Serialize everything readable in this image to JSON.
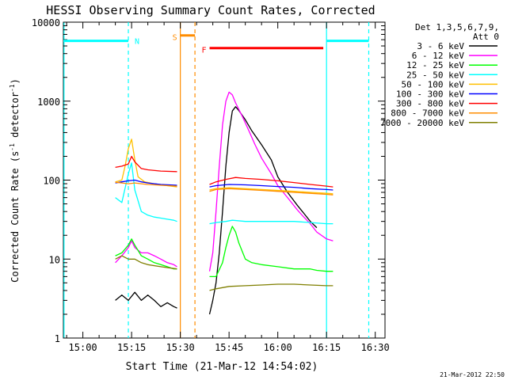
{
  "chart_data": {
    "type": "line",
    "title": "HESSI Observing Summary Count Rates, Corrected",
    "xlabel": "Start Time (21-Mar-12 14:54:02)",
    "ylabel_main": "Corrected Count Rate (s",
    "ylabel_sup1": "-1",
    "ylabel_mid": " detector",
    "ylabel_sup2": "-1",
    "ylabel_end": ")",
    "yscale": "log",
    "ylim": [
      1,
      10000
    ],
    "xlim_minutes": [
      "14:54",
      "16:33"
    ],
    "x_ticks": [
      {
        "label": "15:00",
        "m": 60
      },
      {
        "label": "15:15",
        "m": 75
      },
      {
        "label": "15:30",
        "m": 90
      },
      {
        "label": "15:45",
        "m": 105
      },
      {
        "label": "16:00",
        "m": 120
      },
      {
        "label": "16:15",
        "m": 135
      },
      {
        "label": "16:30",
        "m": 150
      }
    ],
    "y_ticks": [
      {
        "label": "1",
        "v": 1
      },
      {
        "label": "10",
        "v": 10
      },
      {
        "label": "100",
        "v": 100
      },
      {
        "label": "1000",
        "v": 1000
      },
      {
        "label": "10000",
        "v": 10000
      }
    ],
    "legend": {
      "header1": "Det 1,3,5,6,7,9,",
      "header2": "Att 0",
      "placement": "right"
    },
    "series": [
      {
        "name": "3 - 6 keV",
        "color": "#000000",
        "segments": [
          [
            [
              70,
              3
            ],
            [
              72,
              3.5
            ],
            [
              74,
              3
            ],
            [
              76,
              3.8
            ],
            [
              78,
              3
            ],
            [
              80,
              3.5
            ],
            [
              82,
              3
            ],
            [
              84,
              2.5
            ],
            [
              86,
              2.8
            ],
            [
              88,
              2.5
            ],
            [
              89,
              2.4
            ]
          ],
          [
            [
              99,
              2
            ],
            [
              100,
              3
            ],
            [
              101,
              5
            ],
            [
              102,
              12
            ],
            [
              103,
              40
            ],
            [
              104,
              150
            ],
            [
              105,
              400
            ],
            [
              106,
              750
            ],
            [
              107,
              850
            ],
            [
              108,
              760
            ],
            [
              110,
              580
            ],
            [
              112,
              420
            ],
            [
              115,
              280
            ],
            [
              118,
              180
            ],
            [
              120,
              110
            ],
            [
              123,
              70
            ],
            [
              126,
              48
            ],
            [
              128,
              38
            ],
            [
              130,
              30
            ],
            [
              132,
              25
            ]
          ]
        ]
      },
      {
        "name": "6 - 12 keV",
        "color": "#ff00ff",
        "segments": [
          [
            [
              70,
              9
            ],
            [
              72,
              11
            ],
            [
              74,
              14
            ],
            [
              75,
              17
            ],
            [
              76,
              14
            ],
            [
              78,
              12
            ],
            [
              80,
              12
            ],
            [
              82,
              11
            ],
            [
              84,
              10
            ],
            [
              86,
              9
            ],
            [
              88,
              8.5
            ],
            [
              89,
              8
            ]
          ],
          [
            [
              99,
              7
            ],
            [
              100,
              12
            ],
            [
              101,
              40
            ],
            [
              102,
              150
            ],
            [
              103,
              500
            ],
            [
              104,
              1000
            ],
            [
              105,
              1300
            ],
            [
              106,
              1200
            ],
            [
              107,
              950
            ],
            [
              109,
              650
            ],
            [
              111,
              430
            ],
            [
              113,
              280
            ],
            [
              115,
              190
            ],
            [
              118,
              120
            ],
            [
              120,
              85
            ],
            [
              123,
              60
            ],
            [
              126,
              42
            ],
            [
              128,
              34
            ],
            [
              130,
              28
            ],
            [
              132,
              22
            ],
            [
              135,
              18
            ],
            [
              137,
              17
            ]
          ]
        ]
      },
      {
        "name": "12 - 25 keV",
        "color": "#00ff00",
        "segments": [
          [
            [
              70,
              11
            ],
            [
              72,
              12
            ],
            [
              74,
              15
            ],
            [
              75,
              18
            ],
            [
              76,
              15
            ],
            [
              78,
              11
            ],
            [
              80,
              10
            ],
            [
              82,
              9
            ],
            [
              84,
              8.5
            ],
            [
              86,
              8
            ],
            [
              88,
              7.5
            ],
            [
              89,
              7.5
            ]
          ],
          [
            [
              99,
              6
            ],
            [
              101,
              6
            ],
            [
              103,
              9
            ],
            [
              104,
              14
            ],
            [
              105,
              20
            ],
            [
              106,
              26
            ],
            [
              107,
              22
            ],
            [
              108,
              16
            ],
            [
              110,
              10
            ],
            [
              112,
              9
            ],
            [
              115,
              8.5
            ],
            [
              120,
              8
            ],
            [
              125,
              7.5
            ],
            [
              130,
              7.5
            ],
            [
              132,
              7.2
            ],
            [
              135,
              7
            ],
            [
              137,
              7
            ]
          ]
        ]
      },
      {
        "name": "25 - 50 keV",
        "color": "#00ffff",
        "segments": [
          [
            [
              70,
              60
            ],
            [
              72,
              52
            ],
            [
              74,
              120
            ],
            [
              75,
              165
            ],
            [
              76,
              75
            ],
            [
              78,
              40
            ],
            [
              80,
              36
            ],
            [
              82,
              34
            ],
            [
              84,
              33
            ],
            [
              86,
              32
            ],
            [
              88,
              31
            ],
            [
              89,
              30
            ]
          ],
          [
            [
              99,
              28
            ],
            [
              101,
              29
            ],
            [
              104,
              30
            ],
            [
              106,
              31
            ],
            [
              110,
              30
            ],
            [
              115,
              30
            ],
            [
              120,
              30
            ],
            [
              125,
              30
            ],
            [
              130,
              29
            ],
            [
              135,
              28
            ],
            [
              137,
              28
            ]
          ]
        ]
      },
      {
        "name": "50 - 100 keV",
        "color": "#ffc000",
        "segments": [
          [
            [
              70,
              95
            ],
            [
              72,
              100
            ],
            [
              73,
              150
            ],
            [
              74,
              250
            ],
            [
              75,
              330
            ],
            [
              76,
              180
            ],
            [
              77,
              110
            ],
            [
              79,
              95
            ],
            [
              82,
              90
            ],
            [
              86,
              85
            ],
            [
              89,
              82
            ]
          ],
          [
            [
              99,
              75
            ],
            [
              101,
              78
            ],
            [
              105,
              80
            ],
            [
              110,
              78
            ],
            [
              115,
              76
            ],
            [
              120,
              74
            ],
            [
              125,
              72
            ],
            [
              130,
              70
            ],
            [
              135,
              68
            ],
            [
              137,
              67
            ]
          ]
        ]
      },
      {
        "name": "100 - 300 keV",
        "color": "#0000ff",
        "segments": [
          [
            [
              70,
              92
            ],
            [
              72,
              95
            ],
            [
              74,
              98
            ],
            [
              76,
              100
            ],
            [
              78,
              95
            ],
            [
              80,
              92
            ],
            [
              84,
              88
            ],
            [
              89,
              86
            ]
          ],
          [
            [
              99,
              82
            ],
            [
              101,
              85
            ],
            [
              105,
              88
            ],
            [
              110,
              87
            ],
            [
              115,
              85
            ],
            [
              120,
              83
            ],
            [
              125,
              81
            ],
            [
              130,
              78
            ],
            [
              135,
              76
            ],
            [
              137,
              75
            ]
          ]
        ]
      },
      {
        "name": "300 - 800 keV",
        "color": "#ff0000",
        "segments": [
          [
            [
              70,
              145
            ],
            [
              72,
              150
            ],
            [
              74,
              160
            ],
            [
              75,
              200
            ],
            [
              76,
              170
            ],
            [
              78,
              140
            ],
            [
              80,
              135
            ],
            [
              84,
              130
            ],
            [
              89,
              128
            ]
          ],
          [
            [
              99,
              88
            ],
            [
              101,
              95
            ],
            [
              104,
              102
            ],
            [
              107,
              108
            ],
            [
              110,
              105
            ],
            [
              115,
              102
            ],
            [
              120,
              98
            ],
            [
              125,
              93
            ],
            [
              130,
              88
            ],
            [
              135,
              84
            ],
            [
              137,
              82
            ]
          ]
        ]
      },
      {
        "name": "800 - 7000 keV",
        "color": "#ff8c00",
        "segments": [
          [
            [
              70,
              94
            ],
            [
              72,
              92
            ],
            [
              74,
              90
            ],
            [
              76,
              92
            ],
            [
              78,
              90
            ],
            [
              80,
              88
            ],
            [
              84,
              86
            ],
            [
              89,
              84
            ]
          ],
          [
            [
              99,
              72
            ],
            [
              101,
              76
            ],
            [
              105,
              78
            ],
            [
              110,
              76
            ],
            [
              115,
              74
            ],
            [
              120,
              72
            ],
            [
              125,
              70
            ],
            [
              130,
              68
            ],
            [
              135,
              66
            ],
            [
              137,
              65
            ]
          ]
        ]
      },
      {
        "name": "7000 - 20000 keV",
        "color": "#7f7f00",
        "segments": [
          [
            [
              70,
              10
            ],
            [
              72,
              11
            ],
            [
              74,
              10
            ],
            [
              76,
              10
            ],
            [
              78,
              9
            ],
            [
              80,
              8.5
            ],
            [
              84,
              8
            ],
            [
              89,
              7.5
            ]
          ],
          [
            [
              99,
              4
            ],
            [
              101,
              4.2
            ],
            [
              105,
              4.5
            ],
            [
              110,
              4.6
            ],
            [
              115,
              4.7
            ],
            [
              120,
              4.8
            ],
            [
              125,
              4.8
            ],
            [
              130,
              4.7
            ],
            [
              135,
              4.6
            ],
            [
              137,
              4.6
            ]
          ]
        ]
      }
    ],
    "flag_bars": [
      {
        "label": "N",
        "color": "#00ffff",
        "level": 5800,
        "segments": [
          [
            54,
            74
          ],
          [
            135,
            148
          ]
        ]
      },
      {
        "label": "S",
        "color": "#ff8c00",
        "level": 6800,
        "segments": [
          [
            90,
            94.5
          ]
        ]
      },
      {
        "label": "F",
        "color": "#ff0000",
        "level": 4700,
        "segments": [
          [
            99,
            134
          ]
        ]
      }
    ],
    "vertical_markers": [
      {
        "m": 54.2,
        "color": "#00ffff",
        "style": "solid"
      },
      {
        "m": 74,
        "color": "#00ffff",
        "style": "dashed"
      },
      {
        "m": 90,
        "color": "#ff8c00",
        "style": "solid"
      },
      {
        "m": 94.5,
        "color": "#ff8c00",
        "style": "dashed"
      },
      {
        "m": 135,
        "color": "#00ffff",
        "style": "solid"
      },
      {
        "m": 148,
        "color": "#00ffff",
        "style": "dashed"
      }
    ]
  },
  "footer": {
    "timestamp": "21-Mar-2012 22:50"
  }
}
